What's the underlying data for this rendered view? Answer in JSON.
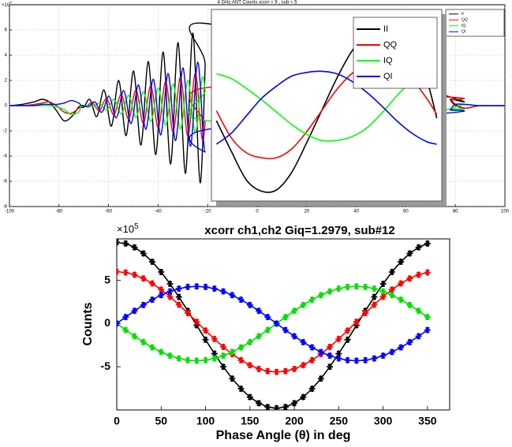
{
  "chart_data": [
    {
      "type": "line",
      "title": "4 GHz ANT Counts xcorr = 9 , sub = 5",
      "y_exponent": {
        "base": "×10",
        "power": "4"
      },
      "x": [
        -100,
        -95,
        -90,
        -87,
        -84,
        -81,
        -78,
        -75,
        -72,
        -71,
        -70,
        -69,
        -68,
        -67,
        -66,
        -65,
        -64,
        -63,
        -62,
        -61,
        -60,
        -59,
        -58,
        -57,
        -56,
        -55,
        -54,
        -53,
        -52,
        -51,
        -50,
        -49,
        -48,
        -47,
        -46,
        -45,
        -44,
        -43,
        -42,
        -41,
        -40,
        -39,
        -38,
        -37,
        -36,
        -35,
        -34,
        -33,
        -32,
        -31,
        -30,
        -29,
        -28,
        -27,
        -26,
        -25,
        -24,
        -23,
        -22,
        -21,
        -20,
        76,
        78,
        80,
        84,
        90,
        100
      ],
      "series": [
        {
          "name": "II",
          "color": "#000000",
          "values": [
            0,
            0.1,
            0.3,
            0.5,
            0.3,
            -0.4,
            -1.2,
            -0.9,
            -0.1,
            -0.13,
            -0.13,
            0.19,
            0.5,
            0.31,
            -0.38,
            -0.88,
            -0.5,
            0.56,
            1.25,
            0.69,
            -0.75,
            -1.63,
            -0.88,
            0.94,
            2.0,
            1.06,
            -1.13,
            -2.38,
            -1.25,
            1.31,
            2.75,
            1.44,
            -1.5,
            -3.13,
            -1.63,
            1.69,
            3.5,
            1.81,
            -1.88,
            -3.88,
            -2.0,
            2.06,
            4.25,
            2.19,
            -2.25,
            -4.63,
            -2.38,
            2.44,
            5.0,
            2.56,
            -2.63,
            -5.38,
            -2.75,
            2.81,
            5.75,
            2.94,
            -3.0,
            -6.13,
            -3.13,
            3.19,
            6.5,
            0.8,
            0.5,
            0.1,
            -0.2,
            0,
            0
          ]
        },
        {
          "name": "QQ",
          "color": "#ff0000",
          "values": [
            0,
            0,
            0.1,
            0.2,
            0.3,
            0,
            -0.5,
            -0.6,
            -0.2,
            0,
            -0.06,
            -0.06,
            0.09,
            0.23,
            0.14,
            -0.17,
            -0.4,
            -0.23,
            0.25,
            0.56,
            0.31,
            -0.34,
            -0.73,
            -0.4,
            0.42,
            0.9,
            0.48,
            -0.51,
            -1.07,
            -0.56,
            0.59,
            1.24,
            0.65,
            -0.68,
            -1.41,
            -0.73,
            0.76,
            1.58,
            0.81,
            -0.85,
            -1.75,
            -0.9,
            0.93,
            1.91,
            0.99,
            -1.01,
            -2.08,
            -1.07,
            1.1,
            2.25,
            1.15,
            -1.18,
            -2.42,
            -1.24,
            1.26,
            2.59,
            1.32,
            -1.35,
            -2.76,
            -1.41,
            1.44,
            0.7,
            0.4,
            0,
            -0.2,
            0,
            0
          ]
        },
        {
          "name": "IQ",
          "color": "#00ff00",
          "values": [
            0,
            0,
            0,
            0,
            0,
            -0.1,
            -0.3,
            -0.7,
            -0.5,
            0,
            0,
            0,
            0,
            -0.05,
            -0.05,
            0.08,
            0.2,
            0.12,
            -0.15,
            -0.35,
            -0.2,
            0.22,
            0.5,
            0.28,
            -0.3,
            -0.65,
            -0.35,
            0.38,
            0.8,
            0.42,
            -0.45,
            -0.95,
            -0.5,
            0.52,
            1.1,
            0.58,
            -0.6,
            -1.25,
            -0.65,
            0.68,
            1.4,
            0.72,
            -0.75,
            -1.55,
            -0.8,
            0.82,
            1.7,
            0.88,
            -0.9,
            -1.85,
            -0.95,
            0.98,
            2.0,
            1.02,
            -1.05,
            -2.15,
            -1.1,
            1.12,
            2.3,
            1.18,
            -1.2,
            -0.3,
            -0.4,
            -0.1,
            0.1,
            0,
            0
          ]
        },
        {
          "name": "QI",
          "color": "#0000ff",
          "values": [
            0,
            0,
            0,
            0.1,
            0.1,
            0.1,
            0.2,
            0.4,
            0.2,
            0,
            0,
            -0.08,
            -0.08,
            0.11,
            0.3,
            0.19,
            -0.23,
            -0.53,
            -0.3,
            0.34,
            0.75,
            0.41,
            -0.45,
            -0.98,
            -0.53,
            0.56,
            1.2,
            0.64,
            -0.68,
            -1.43,
            -0.75,
            0.79,
            1.65,
            0.86,
            -0.9,
            -1.88,
            -0.98,
            1.01,
            2.1,
            1.09,
            -1.13,
            -2.33,
            -1.2,
            1.24,
            2.55,
            1.31,
            -1.35,
            -2.78,
            -1.43,
            1.46,
            3.0,
            1.54,
            -1.58,
            -3.23,
            -1.65,
            1.69,
            3.45,
            1.76,
            -1.8,
            -3.68,
            -1.88,
            -0.6,
            -0.3,
            0.1,
            0.1,
            0,
            0
          ]
        }
      ],
      "xlim": [
        -100,
        100
      ],
      "xticks": [
        -100,
        -80,
        -60,
        -40,
        -20,
        0,
        20,
        40,
        60,
        80,
        100
      ],
      "ylim": [
        -8,
        8
      ],
      "yticks": [
        -8,
        -6,
        -4,
        -2,
        0,
        2,
        4,
        6
      ],
      "grid": true,
      "legend": "top-right"
    },
    {
      "type": "line",
      "x": [
        -16,
        -10,
        -4,
        2,
        8,
        14,
        20,
        26,
        32,
        38,
        44,
        50,
        56,
        62,
        68,
        72
      ],
      "series": [
        {
          "name": "II",
          "color": "#000000",
          "values": [
            -1.0,
            -3.5,
            -5.8,
            -6.7,
            -6.6,
            -5.2,
            -2.8,
            -0.2,
            2.4,
            4.6,
            6.0,
            6.6,
            6.4,
            5.2,
            2.3,
            -0.8
          ]
        },
        {
          "name": "QQ",
          "color": "#ff0000",
          "values": [
            -0.2,
            -2.4,
            -3.6,
            -4.0,
            -4.0,
            -3.3,
            -1.9,
            -0.2,
            1.5,
            2.8,
            3.6,
            3.9,
            3.6,
            2.4,
            0.8,
            -0.5
          ]
        },
        {
          "name": "IQ",
          "color": "#00ff00",
          "values": [
            2.8,
            2.4,
            1.6,
            0.7,
            -0.3,
            -1.3,
            -2.1,
            -2.6,
            -2.6,
            -2.3,
            -1.6,
            -0.4,
            1.0,
            2.2,
            2.9,
            3.0
          ]
        },
        {
          "name": "QI",
          "color": "#0000ff",
          "values": [
            -2.9,
            -2.0,
            -0.6,
            0.8,
            1.8,
            2.6,
            2.9,
            3.0,
            2.8,
            2.2,
            1.3,
            0.2,
            -1.0,
            -2.0,
            -2.7,
            -2.9
          ]
        }
      ],
      "xlim": [
        -18,
        74
      ],
      "ylim": [
        -7.5,
        8
      ],
      "legend": "top-right"
    },
    {
      "type": "line",
      "title": "xcorr ch1,ch2 Giq=1.2979, sub#12",
      "y_exponent": {
        "base": "×10",
        "power": "5"
      },
      "x_label": "Phase Angle (θ) in deg",
      "y_label": "Counts",
      "x": [
        0,
        10,
        20,
        30,
        40,
        50,
        60,
        70,
        80,
        90,
        100,
        110,
        120,
        130,
        140,
        150,
        160,
        170,
        180,
        190,
        200,
        210,
        220,
        230,
        240,
        250,
        260,
        270,
        280,
        290,
        300,
        310,
        320,
        330,
        340,
        350
      ],
      "series": [
        {
          "name": "II",
          "color": "#000000",
          "values": [
            9.4,
            9.26,
            8.82,
            8.11,
            7.15,
            5.97,
            4.6,
            3.08,
            1.47,
            -0.2,
            -1.87,
            -3.48,
            -5.0,
            -6.37,
            -7.55,
            -8.51,
            -9.22,
            -9.66,
            -9.8,
            -9.66,
            -9.22,
            -8.51,
            -7.55,
            -6.37,
            -5.0,
            -3.48,
            -1.87,
            -0.2,
            1.47,
            3.08,
            4.6,
            5.97,
            7.15,
            8.11,
            8.82,
            9.26
          ]
        },
        {
          "name": "QQ",
          "color": "#ff0000",
          "values": [
            6.0,
            5.91,
            5.65,
            5.22,
            4.64,
            3.93,
            3.1,
            2.18,
            1.21,
            0.2,
            -0.81,
            -1.78,
            -2.7,
            -3.53,
            -4.24,
            -4.82,
            -5.25,
            -5.51,
            -5.6,
            -5.51,
            -5.25,
            -4.82,
            -4.24,
            -3.53,
            -2.7,
            -1.78,
            -0.81,
            0.2,
            1.21,
            2.18,
            3.1,
            3.93,
            4.64,
            5.22,
            5.65,
            5.91
          ]
        },
        {
          "name": "IQ",
          "color": "#00e000",
          "values": [
            0,
            -0.75,
            -1.47,
            -2.15,
            -2.76,
            -3.29,
            -3.72,
            -4.04,
            -4.24,
            -4.3,
            -4.24,
            -4.04,
            -3.72,
            -3.29,
            -2.76,
            -2.15,
            -1.47,
            -0.75,
            0,
            0.75,
            1.47,
            2.15,
            2.76,
            3.29,
            3.72,
            4.04,
            4.24,
            4.3,
            4.24,
            4.04,
            3.72,
            3.29,
            2.76,
            2.15,
            1.47,
            0.75
          ]
        },
        {
          "name": "QI",
          "color": "#0000ff",
          "values": [
            0,
            0.75,
            1.47,
            2.15,
            2.76,
            3.29,
            3.72,
            4.04,
            4.24,
            4.3,
            4.24,
            4.04,
            3.72,
            3.29,
            2.76,
            2.15,
            1.47,
            0.75,
            0,
            -0.75,
            -1.47,
            -2.15,
            -2.76,
            -3.29,
            -3.72,
            -4.04,
            -4.24,
            -4.3,
            -4.24,
            -4.04,
            -3.72,
            -3.29,
            -2.76,
            -2.15,
            -1.47,
            -0.75
          ]
        }
      ],
      "xlim": [
        0,
        375
      ],
      "xticks": [
        0,
        50,
        100,
        150,
        200,
        250,
        300,
        350
      ],
      "ylim": [
        -10,
        9.8
      ],
      "yticks": [
        -5,
        0,
        5
      ],
      "marker": "asterisk"
    }
  ]
}
